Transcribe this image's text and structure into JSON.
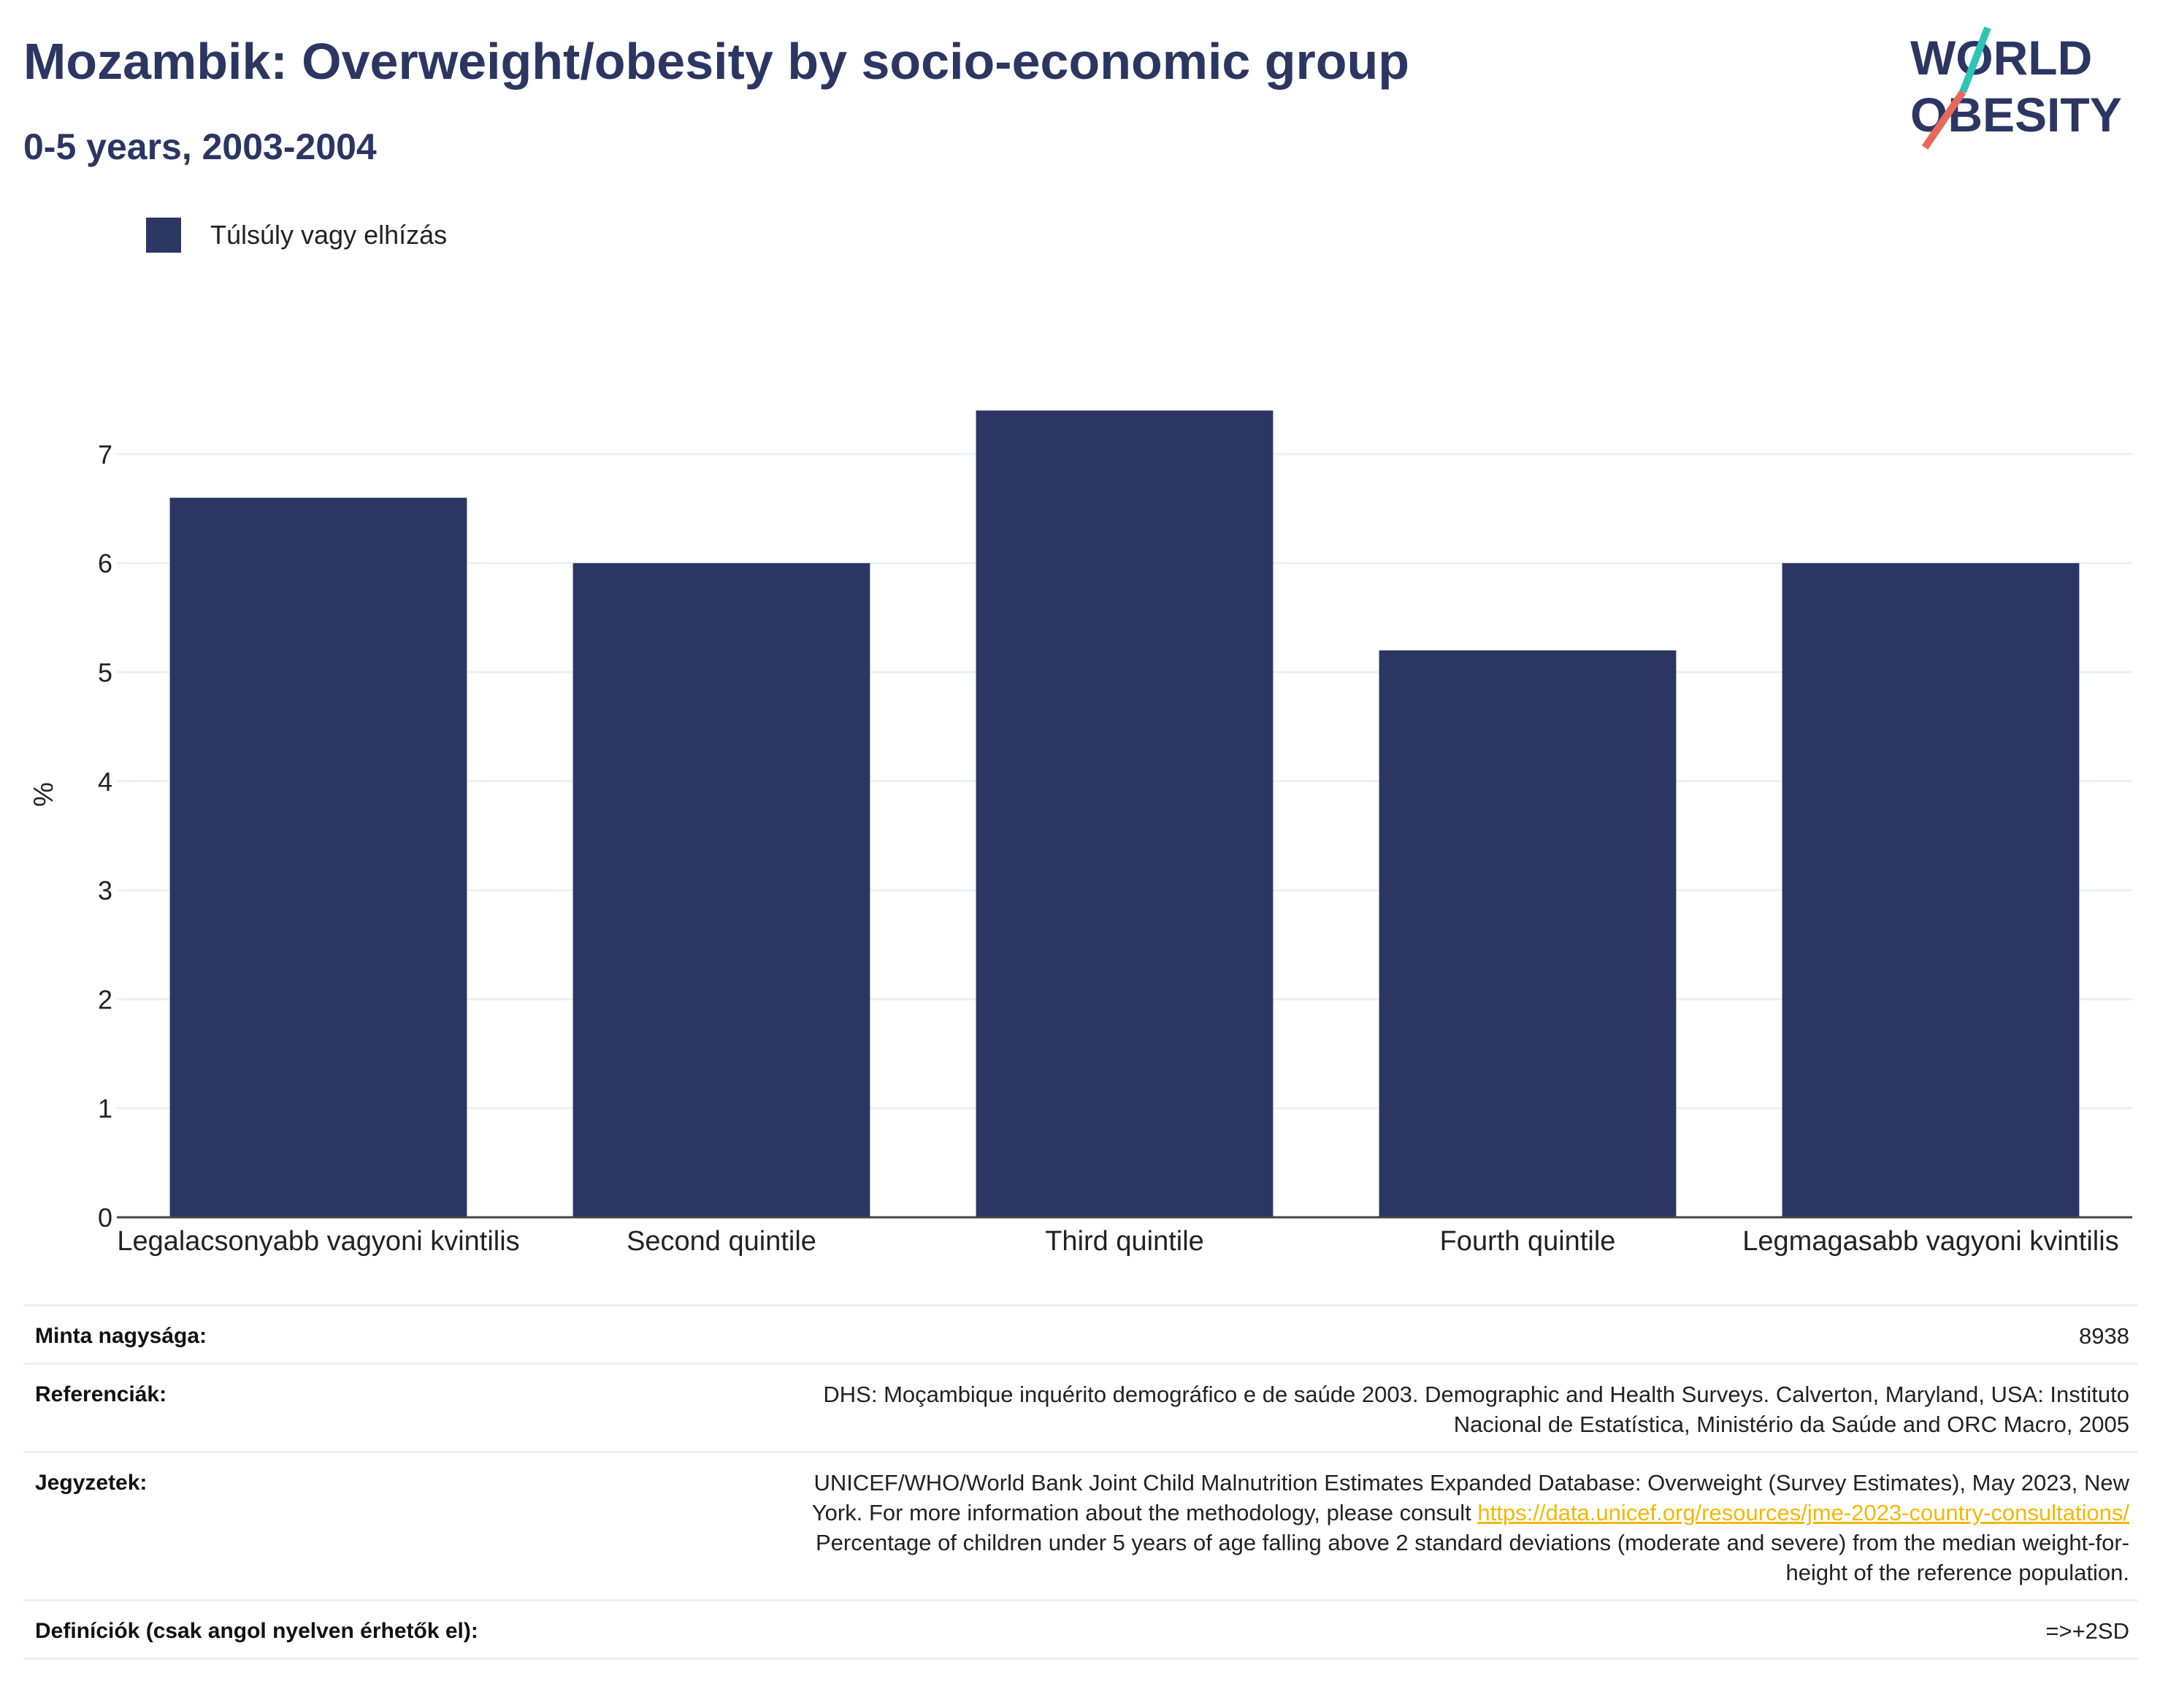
{
  "header": {
    "title": "Mozambik: Overweight/obesity by socio-economic group",
    "subtitle": "0-5 years, 2003-2004"
  },
  "logo": {
    "line1": "WORLD",
    "line2": "OBESITY",
    "colors": {
      "text": "#2b3663",
      "slash_top": "#2ec4b6",
      "slash_bottom": "#e8685a"
    }
  },
  "legend": {
    "items": [
      {
        "label": "Túlsúly vagy elhízás",
        "color": "#2b3663"
      }
    ]
  },
  "chart_data": {
    "type": "bar",
    "categories": [
      "Legalacsonyabb vagyoni kvintilis",
      "Second quintile",
      "Third quintile",
      "Fourth quintile",
      "Legmagasabb vagyoni kvintilis"
    ],
    "series": [
      {
        "name": "Túlsúly vagy elhízás",
        "values": [
          6.6,
          6.0,
          7.4,
          5.2,
          6.0
        ],
        "color": "#2b3663"
      }
    ],
    "ylabel": "%",
    "xlabel": "",
    "ylim": [
      0,
      8
    ],
    "yticks": [
      0,
      1,
      2,
      3,
      4,
      5,
      6,
      7
    ],
    "grid": true,
    "legend_position": "top-left"
  },
  "metadata": {
    "sample_size": {
      "label": "Minta nagysága:",
      "value": "8938"
    },
    "references": {
      "label": "Referenciák:",
      "lines": [
        "DHS: Moçambique inquérito demográfico e de saúde 2003. Demographic and Health Surveys. Calverton, Maryland, USA: Instituto",
        "Nacional de Estatística, Ministério da Saúde and ORC Macro, 2005"
      ]
    },
    "notes": {
      "label": "Jegyzetek:",
      "line1": "UNICEF/WHO/World Bank Joint Child Malnutrition Estimates Expanded Database: Overweight (Survey Estimates), May 2023, New",
      "line2_prefix": "York. For more information about the methodology, please consult ",
      "link": "https://data.unicef.org/resources/jme-2023-country-consultations/",
      "line3": "Percentage of children under 5 years of age falling above 2 standard deviations (moderate and severe) from the median weight-for-",
      "line4": "height of the reference population."
    },
    "definitions": {
      "label": "Definíciók (csak angol nyelven érhetők el):",
      "value": "=>+2SD"
    }
  }
}
